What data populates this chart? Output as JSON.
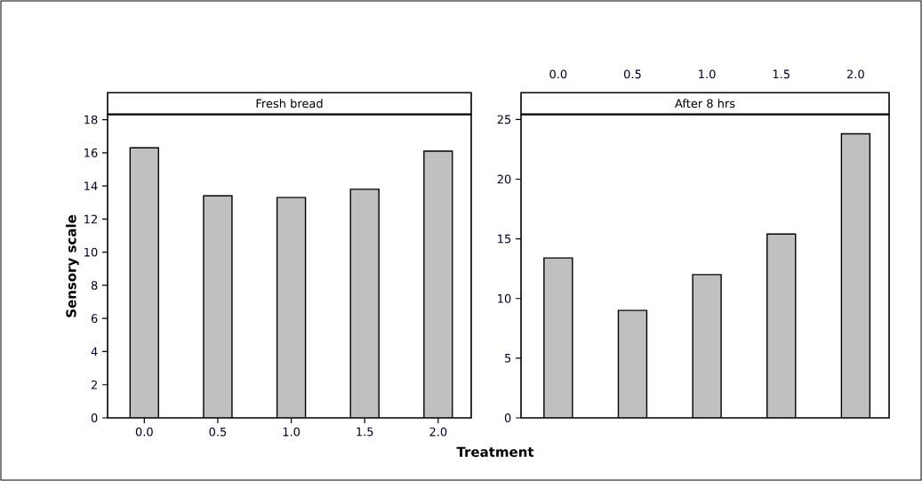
{
  "chart_data": [
    {
      "type": "bar",
      "title": "Fresh bread",
      "xlabel": "Treatment",
      "ylabel": "Sensory scale",
      "categories": [
        "0.0",
        "0.5",
        "1.0",
        "1.5",
        "2.0"
      ],
      "values": [
        16.3,
        13.4,
        13.3,
        13.8,
        16.1
      ],
      "color": "#c0c0c0",
      "ylim": [
        0,
        18.3
      ],
      "yticks": [
        0,
        2,
        4,
        6,
        8,
        10,
        12,
        14,
        16,
        18
      ]
    },
    {
      "type": "bar",
      "title": "After 8 hrs",
      "categories": [
        "0.0",
        "0.5",
        "1.0",
        "1.5",
        "2.0"
      ],
      "values": [
        13.4,
        9.0,
        12.0,
        15.4,
        23.8
      ],
      "color": "#c0c0c0",
      "ylim": [
        0,
        25.4
      ],
      "yticks": [
        0,
        5,
        10,
        15,
        20,
        25
      ]
    }
  ]
}
